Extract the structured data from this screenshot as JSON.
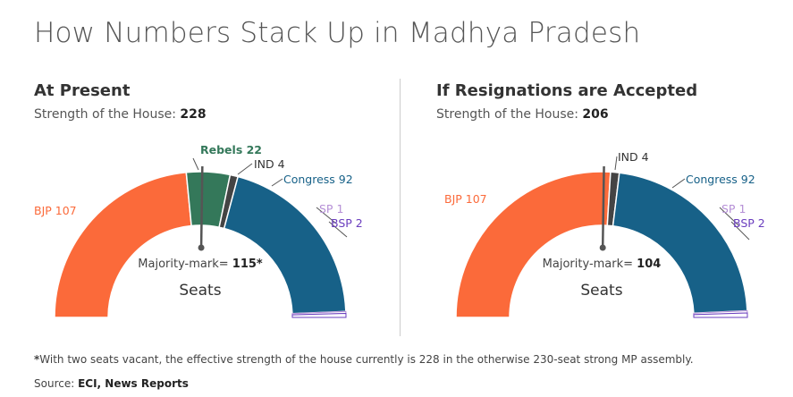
{
  "title": "How Numbers Stack Up in Madhya Pradesh",
  "footnote": {
    "star": "*",
    "text": "With two seats vacant, the effective strength of the house currently is 228 in the otherwise 230-seat strong MP assembly."
  },
  "source": {
    "label": "Source: ",
    "value": "ECI, News Reports"
  },
  "chart_data": [
    {
      "type": "semi-donut",
      "title": "At Present",
      "subtitle_label": "Strength of the House: ",
      "subtitle_value": "228",
      "center_label": "Seats",
      "majority_label": "Majority-mark= ",
      "majority_value": "115*",
      "majority_mark": 115,
      "total": 228,
      "segments": [
        {
          "name": "BJP",
          "value": 107,
          "label": "BJP 107",
          "color": "#fb6a3a"
        },
        {
          "name": "Rebels",
          "value": 22,
          "label": "Rebels 22",
          "color": "#34785a"
        },
        {
          "name": "IND",
          "value": 4,
          "label": "IND 4",
          "color": "#444444"
        },
        {
          "name": "Congress",
          "value": 92,
          "label": "Congress 92",
          "color": "#176188"
        },
        {
          "name": "SP",
          "value": 1,
          "label": "SP 1",
          "color": "#b58fd6"
        },
        {
          "name": "BSP",
          "value": 2,
          "label": "BSP 2",
          "color": "#6a3dbe"
        }
      ]
    },
    {
      "type": "semi-donut",
      "title": "If Resignations are Accepted",
      "subtitle_label": "Strength of the House: ",
      "subtitle_value": "206",
      "center_label": "Seats",
      "majority_label": "Majority-mark= ",
      "majority_value": "104",
      "majority_mark": 104,
      "total": 206,
      "segments": [
        {
          "name": "BJP",
          "value": 107,
          "label": "BJP 107",
          "color": "#fb6a3a"
        },
        {
          "name": "IND",
          "value": 4,
          "label": "IND 4",
          "color": "#444444"
        },
        {
          "name": "Congress",
          "value": 92,
          "label": "Congress 92",
          "color": "#176188"
        },
        {
          "name": "SP",
          "value": 1,
          "label": "SP 1",
          "color": "#b58fd6"
        },
        {
          "name": "BSP",
          "value": 2,
          "label": "BSP 2",
          "color": "#6a3dbe"
        }
      ]
    }
  ]
}
